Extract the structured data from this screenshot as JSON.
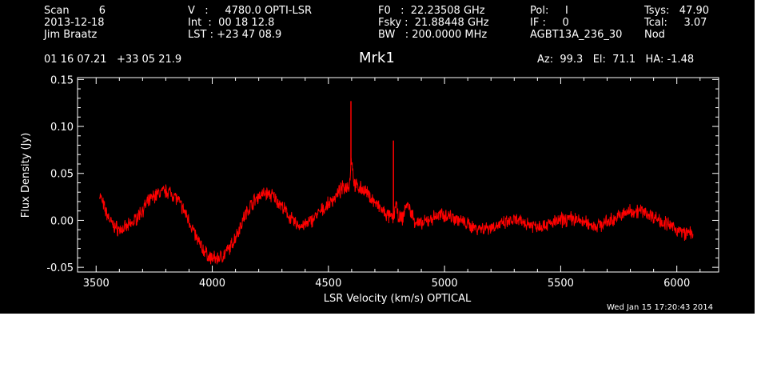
{
  "header": {
    "col1": {
      "line1": "Scan         6",
      "line2": "2013-12-18",
      "line3": "Jim Braatz"
    },
    "col2": {
      "line1": "V   :     4780.0 OPTI-LSR",
      "line2": "Int  :  00 18 12.8",
      "line3": "LST : +23 47 08.9"
    },
    "col3": {
      "line1": "F0   :  22.23508 GHz",
      "line2": "Fsky :  21.88448 GHz",
      "line3": "BW   : 200.0000 MHz"
    },
    "col4": {
      "line1": "Pol:     I",
      "line2": "IF :     0",
      "line3": "AGBT13A_236_30"
    },
    "col5": {
      "line1": "Tsys:   47.90",
      "line2": "Tcal:     3.07",
      "line3": "Nod"
    },
    "coords": "01 16 07.21   +33 05 21.9",
    "source": "Mrk1",
    "pointing": "Az:  99.3   El:  71.1   HA: -1.48",
    "timestamp": "Wed Jan 15 17:20:43 2014"
  },
  "chart_data": {
    "type": "line",
    "title": "Mrk1",
    "xlabel": "LSR Velocity (km/s) OPTICAL",
    "ylabel": "Flux Density (Jy)",
    "xlim": [
      3420,
      6180
    ],
    "ylim": [
      -0.055,
      0.152
    ],
    "xticks": [
      3500,
      4000,
      4500,
      5000,
      5500,
      6000
    ],
    "yticks": [
      -0.05,
      0.0,
      0.05,
      0.1,
      0.15
    ],
    "ytick_labels": [
      "-0.05",
      "0.00",
      "0.05",
      "0.10",
      "0.15"
    ],
    "grid": false,
    "line_color": "#ff0000",
    "series": [
      {
        "x": [
          3515,
          3540,
          3570,
          3600,
          3630,
          3660,
          3690,
          3720,
          3750,
          3780,
          3810,
          3840,
          3870,
          3900,
          3930,
          3960,
          3990,
          4020,
          4050,
          4080,
          4110,
          4140,
          4170,
          4200,
          4230,
          4260,
          4290,
          4320,
          4350,
          4380,
          4410,
          4440,
          4470,
          4500,
          4530,
          4560,
          4590,
          4600,
          4610,
          4620,
          4650,
          4680,
          4710,
          4740,
          4760,
          4780,
          4790,
          4800,
          4820,
          4835,
          4850,
          4870,
          4900,
          4930,
          4960,
          4990,
          5020,
          5050,
          5080,
          5110,
          5140,
          5170,
          5200,
          5250,
          5300,
          5350,
          5400,
          5450,
          5500,
          5550,
          5600,
          5650,
          5700,
          5750,
          5800,
          5850,
          5900,
          5950,
          6000,
          6040,
          6070
        ],
        "y": [
          0.028,
          0.01,
          -0.005,
          -0.01,
          -0.008,
          -0.002,
          0.008,
          0.018,
          0.026,
          0.03,
          0.031,
          0.026,
          0.014,
          0.0,
          -0.018,
          -0.031,
          -0.04,
          -0.041,
          -0.037,
          -0.028,
          -0.012,
          0.005,
          0.018,
          0.026,
          0.029,
          0.026,
          0.018,
          0.008,
          -0.002,
          -0.006,
          -0.004,
          0.003,
          0.01,
          0.017,
          0.025,
          0.034,
          0.038,
          0.068,
          0.04,
          0.036,
          0.033,
          0.025,
          0.016,
          0.008,
          0.004,
          0.002,
          0.02,
          0.003,
          0.002,
          0.018,
          0.012,
          0.0,
          -0.005,
          0.0,
          0.004,
          0.006,
          0.005,
          0.002,
          -0.002,
          -0.006,
          -0.008,
          -0.008,
          -0.007,
          -0.004,
          0.0,
          -0.003,
          -0.006,
          -0.004,
          0.0,
          0.002,
          -0.002,
          -0.006,
          -0.002,
          0.004,
          0.01,
          0.01,
          0.004,
          -0.003,
          -0.01,
          -0.014,
          -0.012
        ]
      }
    ],
    "spikes": [
      {
        "x": 4597,
        "y": 0.127
      },
      {
        "x": 4780,
        "y": 0.085
      }
    ]
  }
}
